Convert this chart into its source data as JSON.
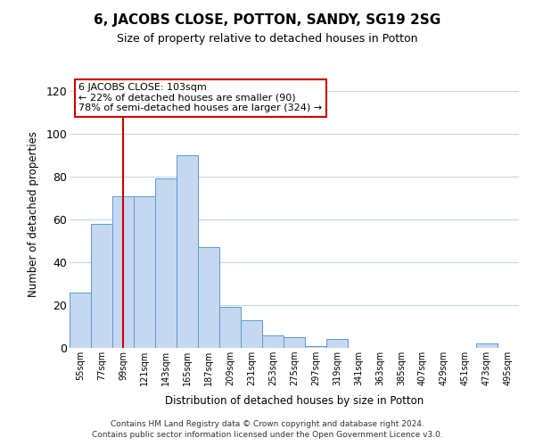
{
  "title": "6, JACOBS CLOSE, POTTON, SANDY, SG19 2SG",
  "subtitle": "Size of property relative to detached houses in Potton",
  "xlabel": "Distribution of detached houses by size in Potton",
  "ylabel": "Number of detached properties",
  "bar_labels": [
    "55sqm",
    "77sqm",
    "99sqm",
    "121sqm",
    "143sqm",
    "165sqm",
    "187sqm",
    "209sqm",
    "231sqm",
    "253sqm",
    "275sqm",
    "297sqm",
    "319sqm",
    "341sqm",
    "363sqm",
    "385sqm",
    "407sqm",
    "429sqm",
    "451sqm",
    "473sqm",
    "495sqm"
  ],
  "bar_heights": [
    26,
    58,
    71,
    71,
    79,
    90,
    47,
    19,
    13,
    6,
    5,
    1,
    4,
    0,
    0,
    0,
    0,
    0,
    0,
    2,
    0
  ],
  "bar_color": "#c5d8f0",
  "bar_edge_color": "#5b9bd5",
  "ylim": [
    0,
    125
  ],
  "yticks": [
    0,
    20,
    40,
    60,
    80,
    100,
    120
  ],
  "vline_x": 2,
  "vline_color": "#cc0000",
  "annotation_title": "6 JACOBS CLOSE: 103sqm",
  "annotation_line1": "← 22% of detached houses are smaller (90)",
  "annotation_line2": "78% of semi-detached houses are larger (324) →",
  "annotation_box_color": "#ffffff",
  "annotation_box_edge": "#cc0000",
  "footer_line1": "Contains HM Land Registry data © Crown copyright and database right 2024.",
  "footer_line2": "Contains public sector information licensed under the Open Government Licence v3.0.",
  "background_color": "#ffffff",
  "grid_color": "#c8d8ea"
}
